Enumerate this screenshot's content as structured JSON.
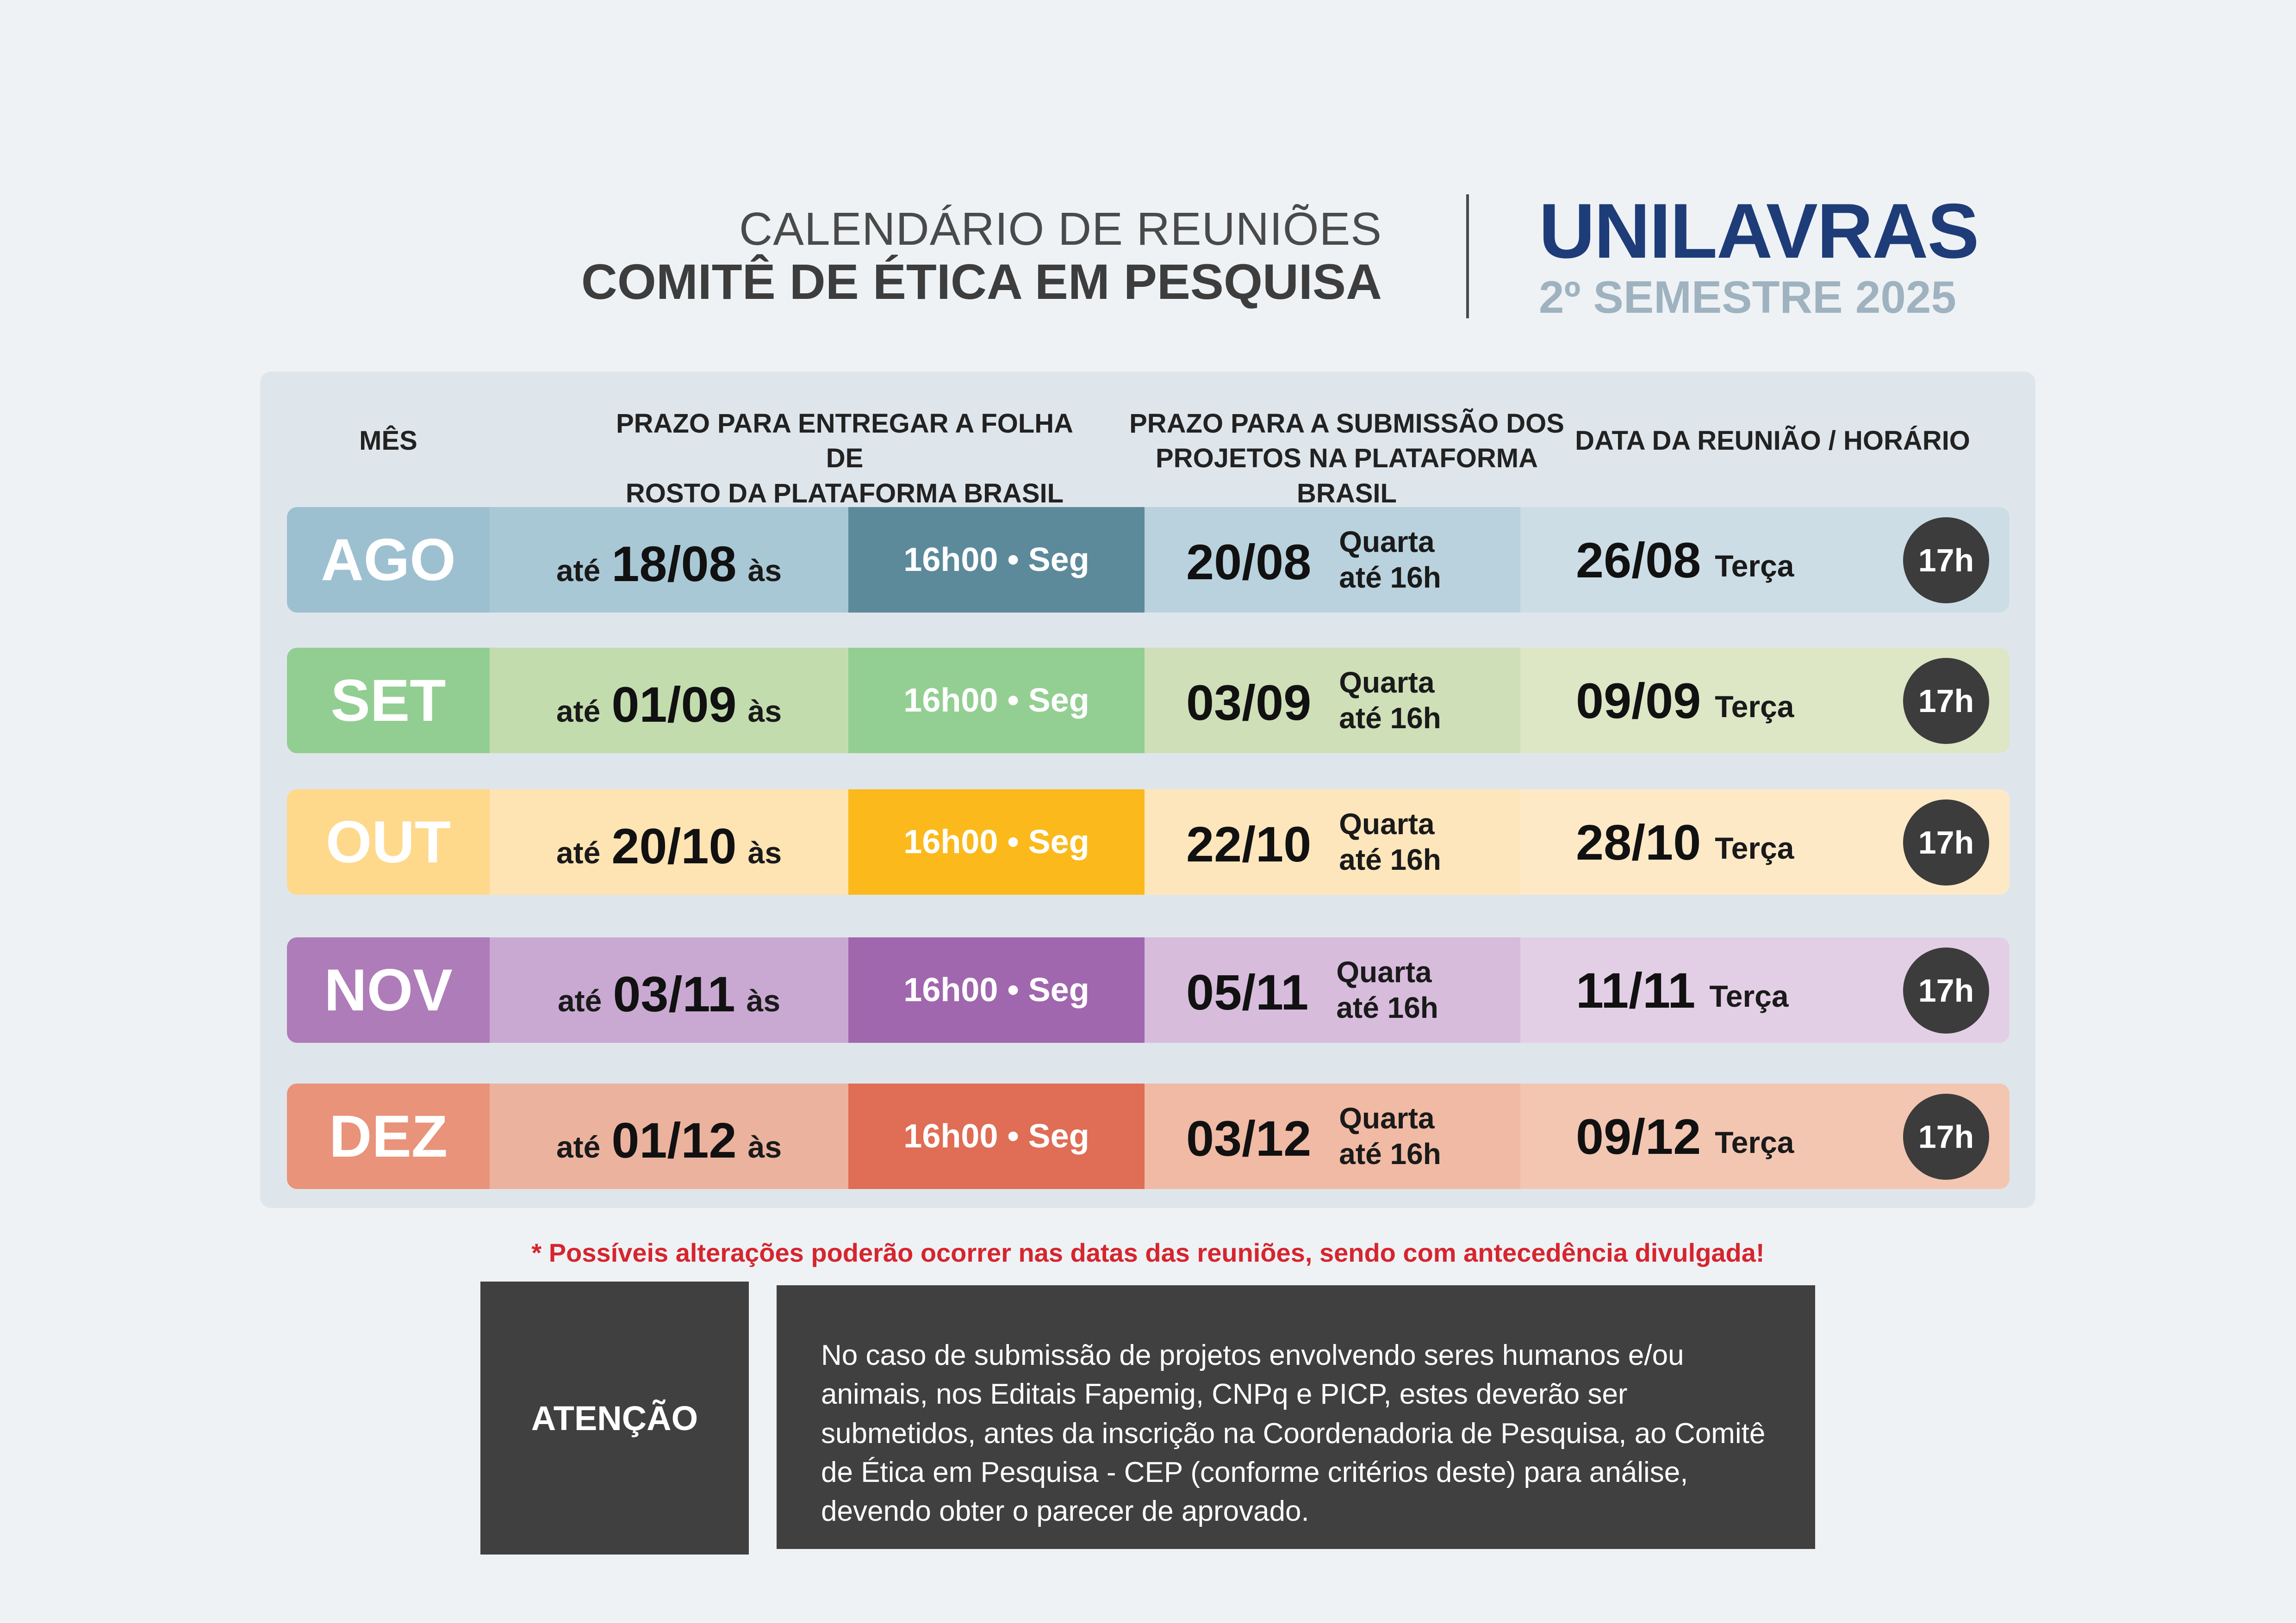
{
  "header": {
    "line1": "CALENDÁRIO DE REUNIÕES",
    "line2": "COMITÊ DE ÉTICA EM PESQUISA",
    "brand": "UNILAVRAS",
    "semester": "2º SEMESTRE 2025"
  },
  "columns": {
    "mes": "MÊS",
    "folha_l1": "PRAZO PARA ENTREGAR A FOLHA DE",
    "folha_l2": "ROSTO DA PLATAFORMA BRASIL",
    "sub_l1": "PRAZO PARA A SUBMISSÃO DOS",
    "sub_l2": "PROJETOS NA PLATAFORMA BRASIL",
    "reuniao": "DATA DA REUNIÃO / HORÁRIO"
  },
  "rows": [
    {
      "month": "AGO",
      "ate": "até",
      "prazo": "18/08",
      "as": "às",
      "hora": "16h00 • Seg",
      "sub": "20/08",
      "sub_day": "Quarta",
      "sub_time": "até 16h",
      "meet": "26/08",
      "meet_day": "Terça",
      "time": "17h",
      "colors": {
        "month": "#9dc0d1",
        "prazo": "#a9c8d6",
        "hour": "#5c8a9b",
        "sub": "#b9d2de",
        "meet": "#ccdde6"
      }
    },
    {
      "month": "SET",
      "ate": "até",
      "prazo": "01/09",
      "as": "às",
      "hora": "16h00 • Seg",
      "sub": "03/09",
      "sub_day": "Quarta",
      "sub_time": "até 16h",
      "meet": "09/09",
      "meet_day": "Terça",
      "time": "17h",
      "colors": {
        "month": "#92ce91",
        "prazo": "#c3dcae",
        "hour": "#93cf92",
        "sub": "#cfdfb8",
        "meet": "#dde6c5"
      }
    },
    {
      "month": "OUT",
      "ate": "até",
      "prazo": "20/10",
      "as": "às",
      "hora": "16h00 • Seg",
      "sub": "22/10",
      "sub_day": "Quarta",
      "sub_time": "até 16h",
      "meet": "28/10",
      "meet_day": "Terça",
      "time": "17h",
      "colors": {
        "month": "#fed98c",
        "prazo": "#fee4b2",
        "hour": "#fbb91c",
        "sub": "#fee6bc",
        "meet": "#fee9c7"
      }
    },
    {
      "month": "NOV",
      "ate": "até",
      "prazo": "03/11",
      "as": "às",
      "hora": "16h00 • Seg",
      "sub": "05/11",
      "sub_day": "Quarta",
      "sub_time": "até 16h",
      "meet": "11/11",
      "meet_day": "Terça",
      "time": "17h",
      "colors": {
        "month": "#ae7cb8",
        "prazo": "#c9a9d2",
        "hour": "#a067af",
        "sub": "#d7bcdc",
        "meet": "#e3cfe5"
      }
    },
    {
      "month": "DEZ",
      "ate": "até",
      "prazo": "01/12",
      "as": "às",
      "hora": "16h00 • Seg",
      "sub": "03/12",
      "sub_day": "Quarta",
      "sub_time": "até 16h",
      "meet": "09/12",
      "meet_day": "Terça",
      "time": "17h",
      "colors": {
        "month": "#e8937a",
        "prazo": "#ebb39e",
        "hour": "#e06d55",
        "sub": "#f0baa4",
        "meet": "#f3c6b2"
      }
    }
  ],
  "notice": "* Possíveis alterações poderão ocorrer nas  datas das reuniões, sendo com antecedência divulgada!",
  "attention": {
    "label": "ATENÇÃO",
    "text": "No caso de submissão de projetos envolvendo seres humanos e/ou animais, nos Editais Fapemig, CNPq e PICP, estes deverão ser submetidos, antes da inscrição na Coordenadoria de Pesquisa, ao Comitê de Ética em Pesquisa - CEP (conforme critérios deste) para análise, devendo obter o parecer de aprovado."
  }
}
